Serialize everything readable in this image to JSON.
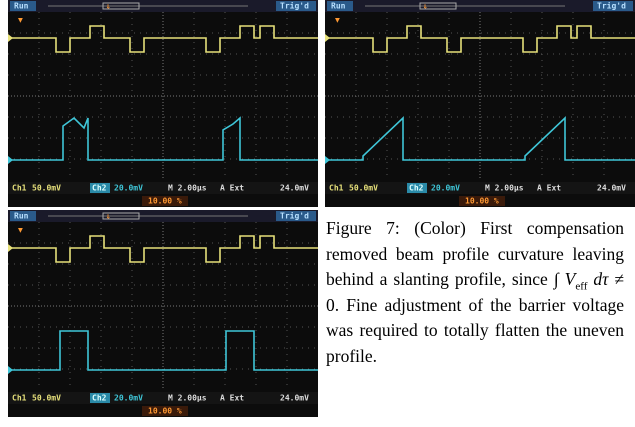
{
  "scopes": [
    {
      "status": "Run",
      "trigger": "Trig'd",
      "ch1": "Ch1",
      "ch1_scale": "50.0mV",
      "ch2": "Ch2",
      "ch2_scale": "20.0mV",
      "timebase": "M 2.00µs",
      "trig_source": "A  Ext",
      "trig_level": "24.0mV",
      "position": "10.00 %"
    },
    {
      "status": "Run",
      "trigger": "Trig'd",
      "ch1": "Ch1",
      "ch1_scale": "50.0mV",
      "ch2": "Ch2",
      "ch2_scale": "20.0mV",
      "timebase": "M 2.00µs",
      "trig_source": "A  Ext",
      "trig_level": "24.0mV",
      "position": "10.00 %"
    },
    {
      "status": "Run",
      "trigger": "Trig'd",
      "ch1": "Ch1",
      "ch1_scale": "50.0mV",
      "ch2": "Ch2",
      "ch2_scale": "20.0mV",
      "timebase": "M 2.00µs",
      "trig_source": "A  Ext",
      "trig_level": "24.0mV",
      "position": "10.00 %"
    }
  ],
  "caption": {
    "label": "Figure 7:",
    "text": "(Color) First compensation removed beam profile curvature leaving behind a slanting profile, since",
    "integral": "∫",
    "variable": "V",
    "subscript": "eff",
    "differential": "dτ",
    "relation": "≠ 0.",
    "text_after": "Fine adjustment of the barrier voltage was required to totally flatten the uneven profile."
  }
}
